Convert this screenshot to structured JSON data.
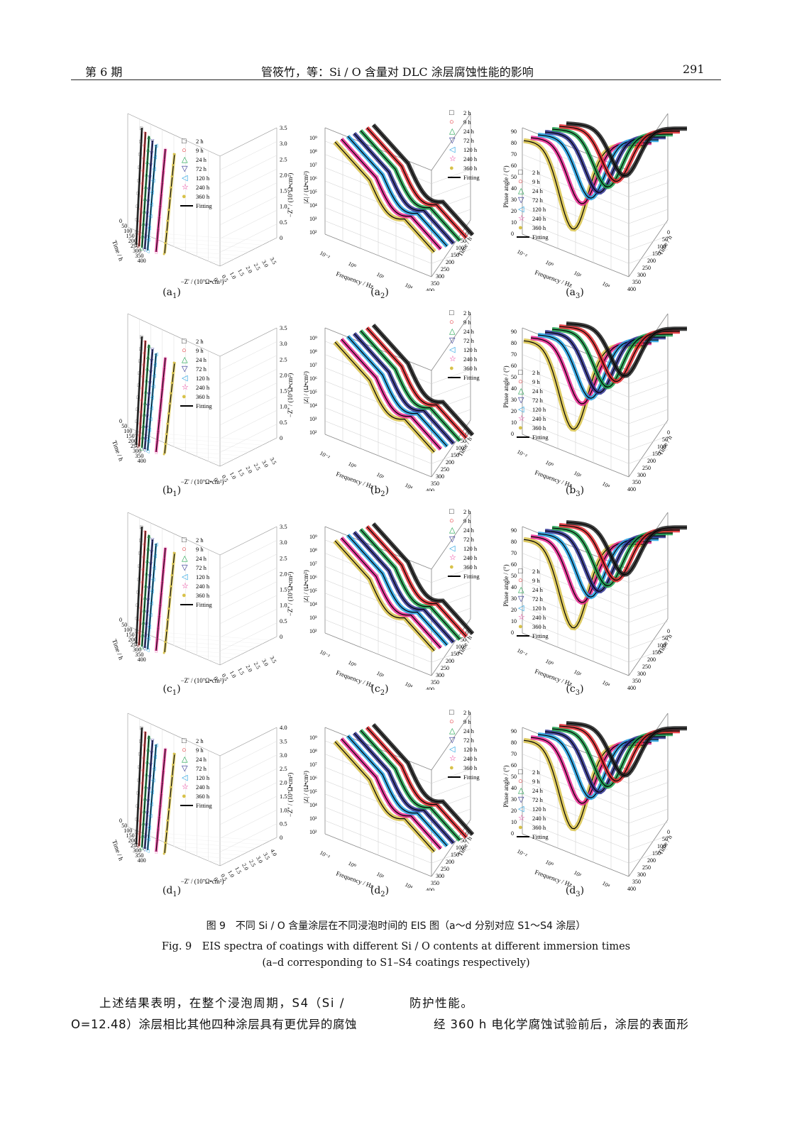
{
  "header": {
    "issue": "第 6 期",
    "title": "管筱竹，等：Si / O 含量对 DLC 涂层腐蚀性能的影响",
    "page": "291"
  },
  "figure": {
    "legend": [
      "2 h",
      "9 h",
      "24 h",
      "72 h",
      "120 h",
      "240 h",
      "360 h",
      "Fitting"
    ],
    "series_colors": [
      "#1f1f1f",
      "#e0262b",
      "#1aa04a",
      "#2b2f8f",
      "#1e9fe0",
      "#e8238f",
      "#d8c24a"
    ],
    "axes": {
      "nyq_x": "−Z' / (10⁷Ω•cm²)",
      "nyq_y": "−Z'' / (10⁷Ω•cm²)",
      "bode_y": "|Z| / (Ω•cm²)",
      "freq": "Frequency / Hz",
      "time": "Time / h",
      "phase": "Phase angle / (°)"
    },
    "time_ticks": [
      "0",
      "50",
      "100",
      "150",
      "200",
      "250",
      "300",
      "350",
      "400"
    ],
    "nyq_ticks_a": [
      "0",
      "0.5",
      "1.0",
      "1.5",
      "2.0",
      "2.5",
      "3.0",
      "3.5"
    ],
    "nyq_ticks_d": [
      "0",
      "0.5",
      "1.0",
      "1.5",
      "2.0",
      "2.5",
      "3.0",
      "3.5",
      "4.0"
    ],
    "bode_ticks": [
      "10²",
      "10³",
      "10⁴",
      "10⁵",
      "10⁶",
      "10⁷",
      "10⁸",
      "10⁹"
    ],
    "phase_ticks": [
      "0",
      "10",
      "20",
      "30",
      "40",
      "50",
      "60",
      "70",
      "80",
      "90"
    ],
    "freq_ticks": [
      "10⁻²",
      "10⁰",
      "10²",
      "10⁴"
    ],
    "sublabels": [
      [
        "(a",
        "1",
        ")"
      ],
      [
        "(a",
        "2",
        ")"
      ],
      [
        "(a",
        "3",
        ")"
      ],
      [
        "(b",
        "1",
        ")"
      ],
      [
        "(b",
        "2",
        ")"
      ],
      [
        "(b",
        "3",
        ")"
      ],
      [
        "(c",
        "1",
        ")"
      ],
      [
        "(c",
        "2",
        ")"
      ],
      [
        "(c",
        "3",
        ")"
      ],
      [
        "(d",
        "1",
        ")"
      ],
      [
        "(d",
        "2",
        ")"
      ],
      [
        "(d",
        "3",
        ")"
      ]
    ]
  },
  "caption": {
    "cn": "图 9　不同 Si / O 含量涂层在不同浸泡时间的 EIS 图（a～d 分别对应 S1～S4 涂层）",
    "en1": "Fig. 9　EIS spectra of coatings with different Si / O contents at different immersion times",
    "en2": "(a–d corresponding to S1–S4 coatings respectively)"
  },
  "body": {
    "l1": "上述结果表明，在整个浸泡周期，S4（Si /",
    "l2": "O=12.48）涂层相比其他四种涂层具有更优异的腐蚀",
    "r1": "防护性能。",
    "r2": "经 360 h 电化学腐蚀试验前后，涂层的表面形"
  }
}
